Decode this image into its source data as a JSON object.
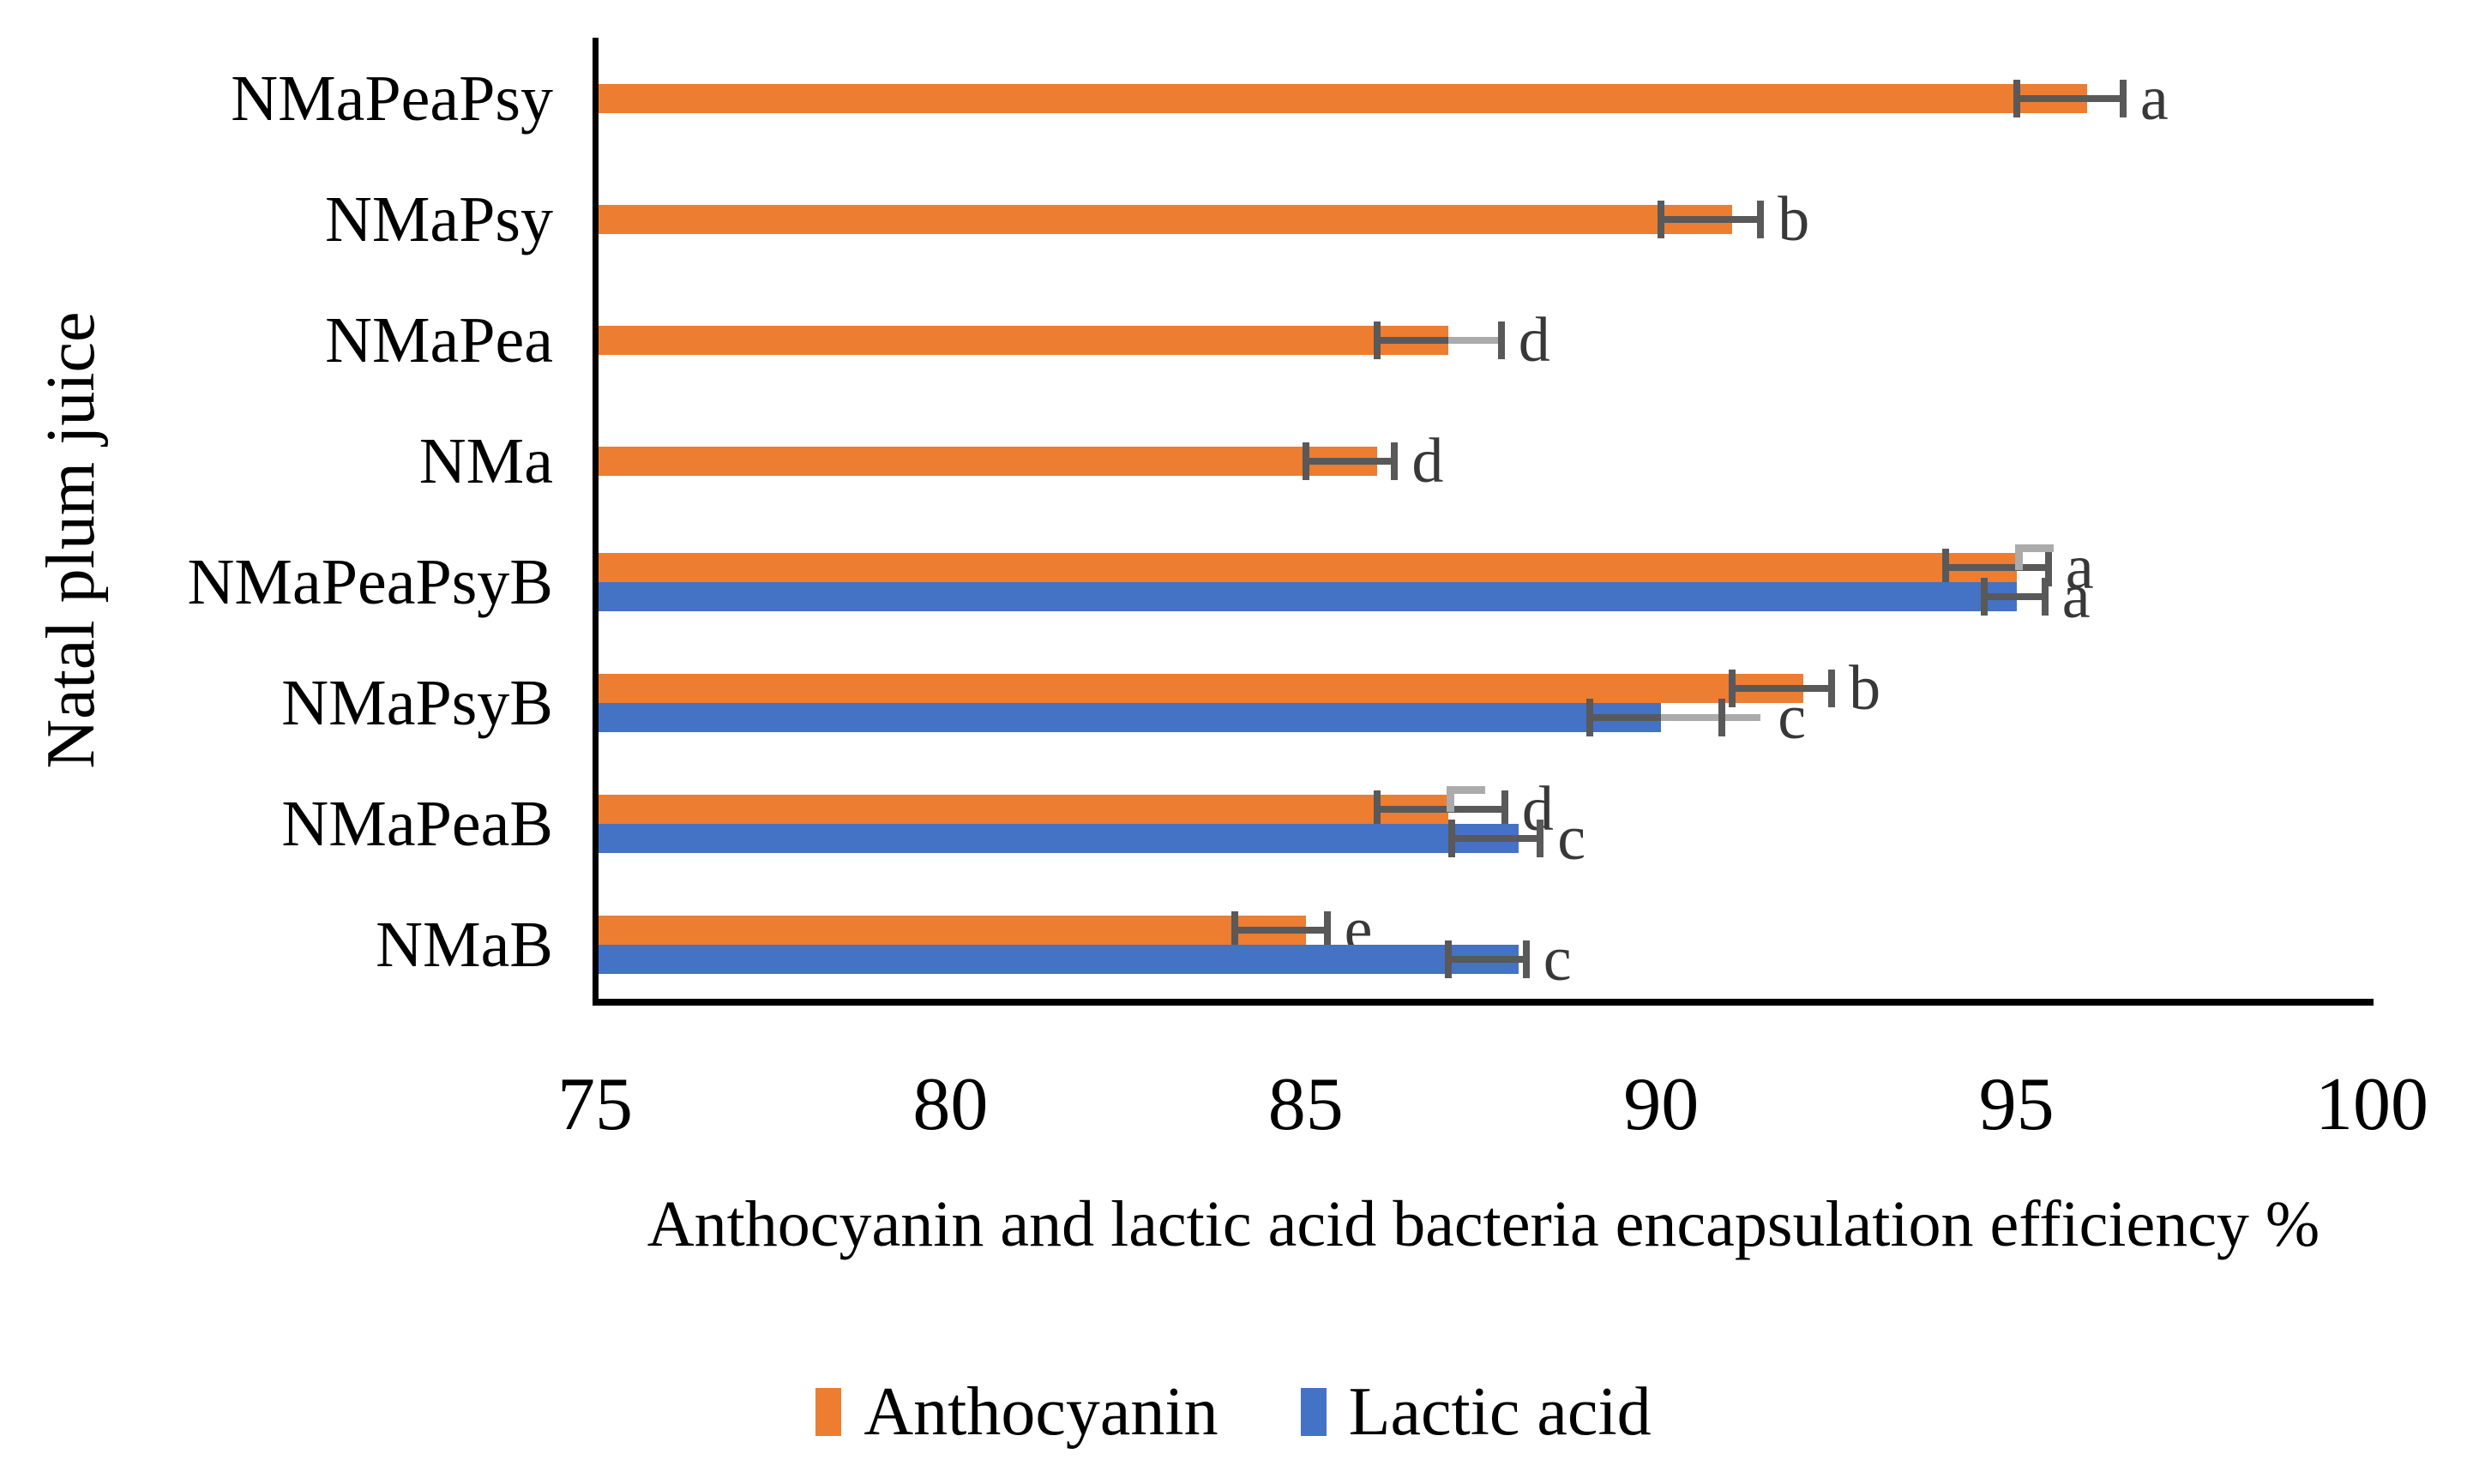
{
  "chart_data": {
    "type": "bar",
    "orientation": "horizontal",
    "title": "",
    "xlabel": "Anthocyanin and lactic acid bacteria encapsulation efficiency %",
    "ylabel": "Natal plum juice",
    "xlim": [
      75,
      100
    ],
    "xticks": [
      "75",
      "80",
      "85",
      "90",
      "95",
      "100"
    ],
    "grid": false,
    "legend_position": "bottom",
    "categories": [
      "NMaPeaPsy",
      "NMaPsy",
      "NMaPea",
      "NMa",
      "NMaPeaPsyB",
      "NMaPsyB",
      "NMaPeaB",
      "NMaB"
    ],
    "series": [
      {
        "name": "Anthocyanin",
        "color": "#ED7D31",
        "values": [
          96,
          91,
          87,
          86,
          95,
          92,
          87,
          85
        ]
      },
      {
        "name": "Lactic acid",
        "color": "#4472C4",
        "values": [
          null,
          null,
          null,
          null,
          95,
          90,
          88,
          88
        ]
      }
    ],
    "bars": [
      {
        "category": "NMaPeaPsy",
        "anthocyanin": {
          "value": 96,
          "letter": "a",
          "err": [
            95,
            96.5
          ]
        },
        "lactic": null
      },
      {
        "category": "NMaPsy",
        "anthocyanin": {
          "value": 91,
          "letter": "b",
          "err": [
            90,
            91.4
          ]
        },
        "lactic": null
      },
      {
        "category": "NMaPea",
        "anthocyanin": {
          "value": 87,
          "letter": "d",
          "err": [
            86,
            87
          ],
          "caps": [
            86,
            87.75
          ],
          "gray": [
            87,
            87.7
          ]
        },
        "lactic": null
      },
      {
        "category": "NMa",
        "anthocyanin": {
          "value": 86,
          "letter": "d",
          "err": [
            85,
            86.25
          ]
        },
        "lactic": null
      },
      {
        "category": "NMaPeaPsyB",
        "anthocyanin": {
          "value": 95,
          "letter": "a",
          "err": [
            94,
            95.45
          ],
          "hook": true
        },
        "lactic": {
          "value": 95,
          "letter": "a",
          "err": [
            94.55,
            95.4
          ]
        }
      },
      {
        "category": "NMaPsyB",
        "anthocyanin": {
          "value": 92,
          "letter": "b",
          "err": [
            91,
            92.4
          ]
        },
        "lactic": {
          "value": 90,
          "letter": "c",
          "err": [
            89,
            90
          ],
          "caps": [
            89,
            90.85
          ],
          "gray": [
            90,
            91.4
          ]
        }
      },
      {
        "category": "NMaPeaB",
        "anthocyanin": {
          "value": 87,
          "letter": "d",
          "err": [
            86,
            87.8
          ],
          "hook": true
        },
        "lactic": {
          "value": 88,
          "letter": "c",
          "err": [
            87.05,
            88.3
          ]
        }
      },
      {
        "category": "NMaB",
        "anthocyanin": {
          "value": 85,
          "letter": "e",
          "err": [
            84,
            85.3
          ]
        },
        "lactic": {
          "value": 88,
          "letter": "c",
          "err": [
            87,
            88.1
          ]
        }
      }
    ],
    "colors": {
      "anthocyanin": "#ED7D31",
      "lactic": "#4472C4",
      "error_bar": "#595959",
      "error_bar_light": "#ABABAB",
      "letter": "#383838",
      "axis": "#000000"
    }
  }
}
